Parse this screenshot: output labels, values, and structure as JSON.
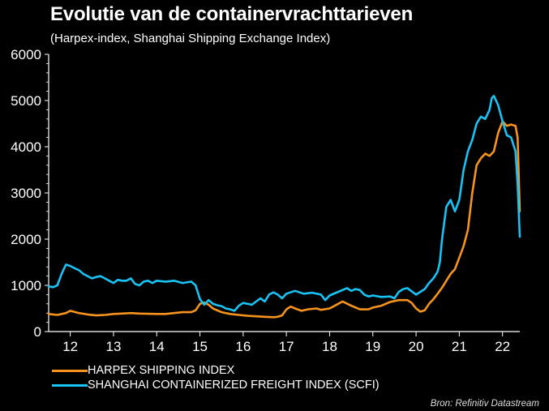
{
  "chart_data": {
    "type": "line",
    "title": "Evolutie van de containervrachttarieven",
    "subtitle": "(Harpex-index, Shanghai Shipping Exchange Index)",
    "xlabel": "",
    "ylabel": "",
    "x_tick_labels": [
      "12",
      "13",
      "14",
      "15",
      "16",
      "17",
      "18",
      "19",
      "20",
      "21",
      "22"
    ],
    "y_ticks": [
      0,
      1000,
      2000,
      3000,
      4000,
      5000,
      6000
    ],
    "ylim": [
      0,
      6000
    ],
    "xlim": [
      2011.5,
      2022.4
    ],
    "grid": false,
    "legend_position": "bottom-left",
    "series": [
      {
        "name": "HARPEX SHIPPING INDEX",
        "color": "#F7941D",
        "points": [
          [
            2011.5,
            380
          ],
          [
            2011.7,
            360
          ],
          [
            2011.9,
            400
          ],
          [
            2012.0,
            450
          ],
          [
            2012.2,
            400
          ],
          [
            2012.4,
            370
          ],
          [
            2012.6,
            350
          ],
          [
            2012.8,
            360
          ],
          [
            2013.0,
            380
          ],
          [
            2013.2,
            390
          ],
          [
            2013.4,
            400
          ],
          [
            2013.6,
            390
          ],
          [
            2013.8,
            385
          ],
          [
            2014.0,
            380
          ],
          [
            2014.2,
            380
          ],
          [
            2014.4,
            400
          ],
          [
            2014.6,
            420
          ],
          [
            2014.8,
            420
          ],
          [
            2014.9,
            460
          ],
          [
            2015.0,
            600
          ],
          [
            2015.1,
            630
          ],
          [
            2015.2,
            580
          ],
          [
            2015.3,
            500
          ],
          [
            2015.5,
            420
          ],
          [
            2015.7,
            380
          ],
          [
            2015.9,
            360
          ],
          [
            2016.1,
            340
          ],
          [
            2016.3,
            330
          ],
          [
            2016.5,
            320
          ],
          [
            2016.7,
            310
          ],
          [
            2016.8,
            320
          ],
          [
            2016.9,
            350
          ],
          [
            2017.0,
            480
          ],
          [
            2017.1,
            540
          ],
          [
            2017.2,
            500
          ],
          [
            2017.35,
            450
          ],
          [
            2017.5,
            480
          ],
          [
            2017.7,
            500
          ],
          [
            2017.8,
            470
          ],
          [
            2018.0,
            500
          ],
          [
            2018.2,
            600
          ],
          [
            2018.3,
            650
          ],
          [
            2018.5,
            560
          ],
          [
            2018.7,
            480
          ],
          [
            2018.9,
            480
          ],
          [
            2019.0,
            520
          ],
          [
            2019.2,
            560
          ],
          [
            2019.4,
            640
          ],
          [
            2019.6,
            680
          ],
          [
            2019.8,
            680
          ],
          [
            2019.9,
            620
          ],
          [
            2020.0,
            500
          ],
          [
            2020.1,
            430
          ],
          [
            2020.2,
            460
          ],
          [
            2020.3,
            600
          ],
          [
            2020.4,
            700
          ],
          [
            2020.5,
            820
          ],
          [
            2020.6,
            950
          ],
          [
            2020.7,
            1100
          ],
          [
            2020.8,
            1250
          ],
          [
            2020.9,
            1350
          ],
          [
            2021.0,
            1600
          ],
          [
            2021.1,
            1850
          ],
          [
            2021.2,
            2200
          ],
          [
            2021.3,
            3000
          ],
          [
            2021.4,
            3600
          ],
          [
            2021.5,
            3750
          ],
          [
            2021.6,
            3850
          ],
          [
            2021.7,
            3800
          ],
          [
            2021.8,
            3900
          ],
          [
            2021.9,
            4300
          ],
          [
            2022.0,
            4550
          ],
          [
            2022.1,
            4450
          ],
          [
            2022.2,
            4480
          ],
          [
            2022.3,
            4450
          ],
          [
            2022.35,
            4200
          ],
          [
            2022.4,
            2600
          ]
        ]
      },
      {
        "name": "SHANGHAI CONTAINERIZED FREIGHT INDEX (SCFI)",
        "color": "#19C3F5",
        "points": [
          [
            2011.5,
            980
          ],
          [
            2011.6,
            960
          ],
          [
            2011.7,
            1000
          ],
          [
            2011.8,
            1250
          ],
          [
            2011.9,
            1450
          ],
          [
            2012.0,
            1420
          ],
          [
            2012.1,
            1370
          ],
          [
            2012.2,
            1330
          ],
          [
            2012.3,
            1250
          ],
          [
            2012.4,
            1200
          ],
          [
            2012.5,
            1150
          ],
          [
            2012.6,
            1180
          ],
          [
            2012.7,
            1200
          ],
          [
            2012.8,
            1150
          ],
          [
            2012.9,
            1100
          ],
          [
            2013.0,
            1050
          ],
          [
            2013.1,
            1120
          ],
          [
            2013.2,
            1100
          ],
          [
            2013.3,
            1100
          ],
          [
            2013.4,
            1150
          ],
          [
            2013.5,
            1030
          ],
          [
            2013.6,
            1000
          ],
          [
            2013.7,
            1080
          ],
          [
            2013.8,
            1100
          ],
          [
            2013.9,
            1050
          ],
          [
            2014.0,
            1100
          ],
          [
            2014.2,
            1080
          ],
          [
            2014.4,
            1100
          ],
          [
            2014.6,
            1050
          ],
          [
            2014.8,
            1080
          ],
          [
            2014.9,
            1000
          ],
          [
            2015.0,
            700
          ],
          [
            2015.1,
            580
          ],
          [
            2015.2,
            680
          ],
          [
            2015.3,
            600
          ],
          [
            2015.4,
            570
          ],
          [
            2015.5,
            550
          ],
          [
            2015.6,
            500
          ],
          [
            2015.7,
            480
          ],
          [
            2015.8,
            450
          ],
          [
            2015.9,
            560
          ],
          [
            2016.0,
            620
          ],
          [
            2016.2,
            580
          ],
          [
            2016.4,
            720
          ],
          [
            2016.5,
            650
          ],
          [
            2016.6,
            800
          ],
          [
            2016.7,
            850
          ],
          [
            2016.8,
            800
          ],
          [
            2016.9,
            720
          ],
          [
            2017.0,
            820
          ],
          [
            2017.2,
            880
          ],
          [
            2017.4,
            820
          ],
          [
            2017.6,
            840
          ],
          [
            2017.8,
            800
          ],
          [
            2017.9,
            680
          ],
          [
            2018.0,
            780
          ],
          [
            2018.2,
            860
          ],
          [
            2018.4,
            940
          ],
          [
            2018.5,
            880
          ],
          [
            2018.6,
            920
          ],
          [
            2018.7,
            900
          ],
          [
            2018.8,
            800
          ],
          [
            2018.9,
            760
          ],
          [
            2019.0,
            780
          ],
          [
            2019.2,
            750
          ],
          [
            2019.4,
            760
          ],
          [
            2019.5,
            720
          ],
          [
            2019.6,
            860
          ],
          [
            2019.7,
            920
          ],
          [
            2019.8,
            940
          ],
          [
            2019.9,
            870
          ],
          [
            2020.0,
            800
          ],
          [
            2020.1,
            860
          ],
          [
            2020.2,
            920
          ],
          [
            2020.3,
            1050
          ],
          [
            2020.4,
            1150
          ],
          [
            2020.5,
            1300
          ],
          [
            2020.55,
            1500
          ],
          [
            2020.6,
            2000
          ],
          [
            2020.7,
            2700
          ],
          [
            2020.8,
            2850
          ],
          [
            2020.9,
            2600
          ],
          [
            2021.0,
            2850
          ],
          [
            2021.1,
            3500
          ],
          [
            2021.2,
            3900
          ],
          [
            2021.3,
            4150
          ],
          [
            2021.4,
            4500
          ],
          [
            2021.5,
            4650
          ],
          [
            2021.6,
            4600
          ],
          [
            2021.7,
            4800
          ],
          [
            2021.75,
            5050
          ],
          [
            2021.8,
            5100
          ],
          [
            2021.9,
            4900
          ],
          [
            2022.0,
            4550
          ],
          [
            2022.1,
            4250
          ],
          [
            2022.2,
            4200
          ],
          [
            2022.3,
            3900
          ],
          [
            2022.35,
            3200
          ],
          [
            2022.4,
            2050
          ]
        ]
      }
    ]
  },
  "source": "Bron: Refinitiv Datastream"
}
